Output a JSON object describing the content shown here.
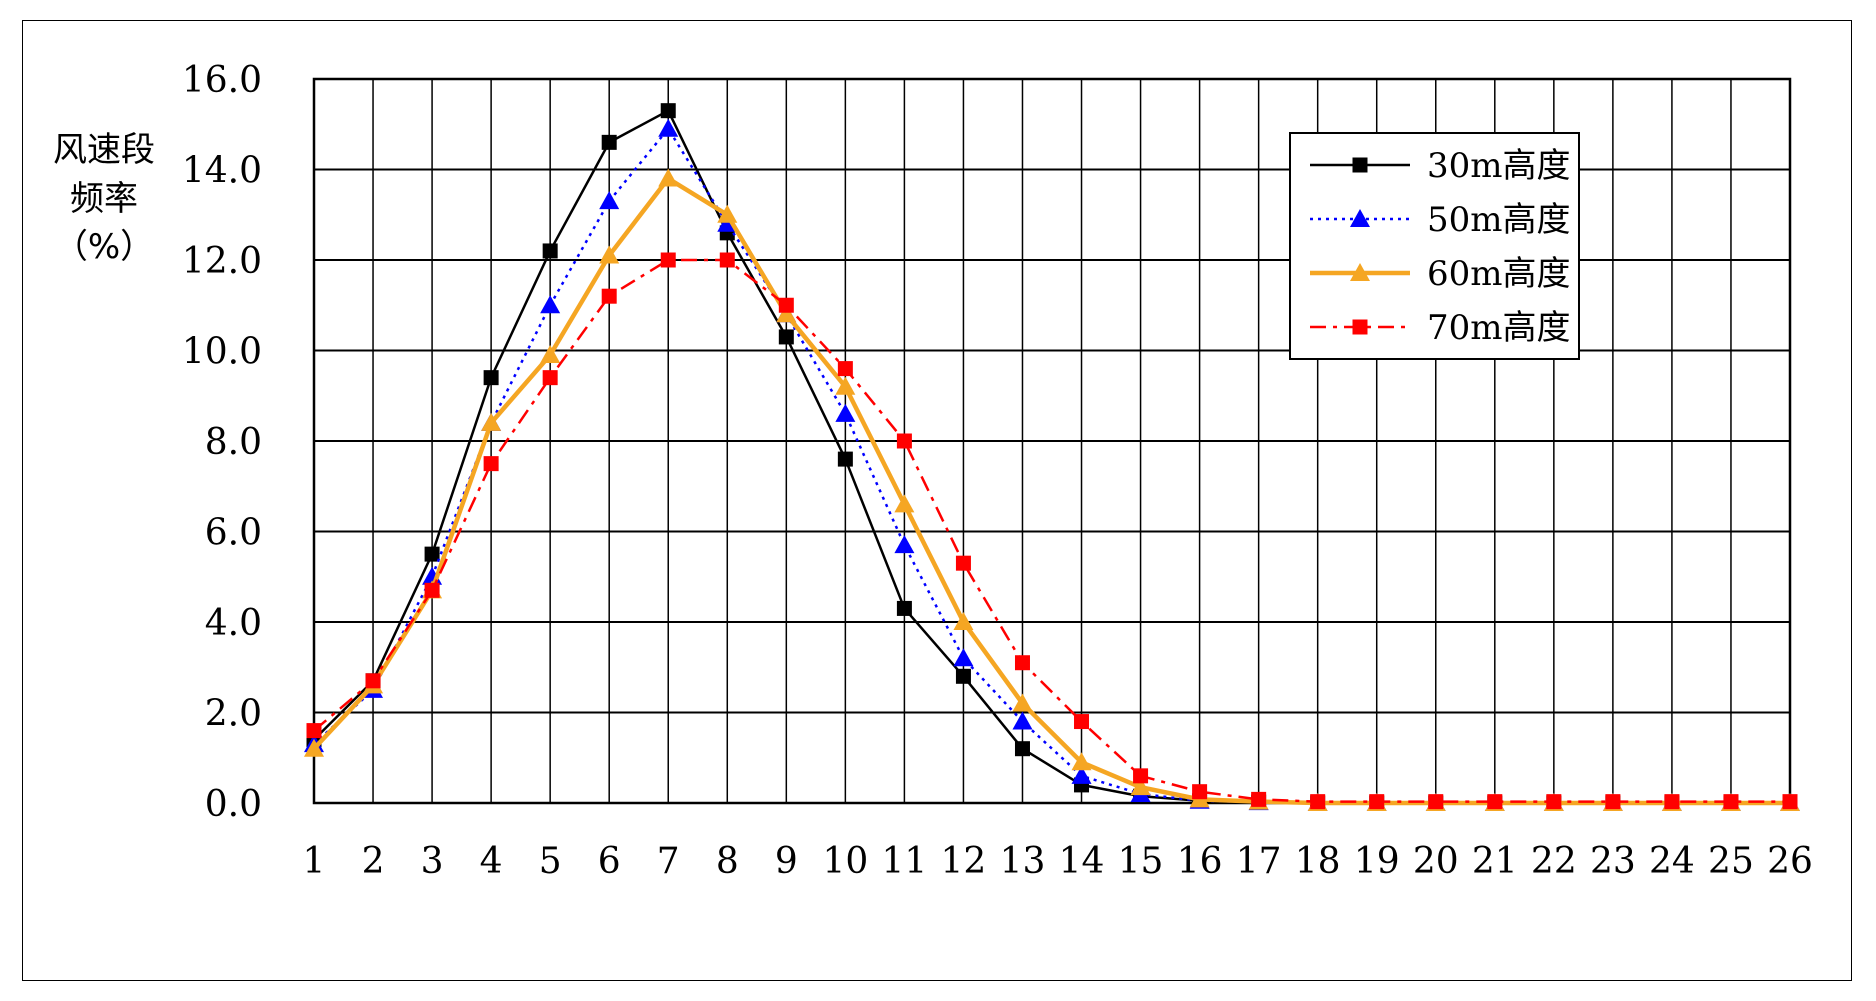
{
  "chart_data": {
    "type": "line",
    "ylabel_lines": [
      "风速段",
      "频率",
      "（%）"
    ],
    "xlabel": "",
    "categories": [
      "1",
      "2",
      "3",
      "4",
      "5",
      "6",
      "7",
      "8",
      "9",
      "10",
      "11",
      "12",
      "13",
      "14",
      "15",
      "16",
      "17",
      "18",
      "19",
      "20",
      "21",
      "22",
      "23",
      "24",
      "25",
      "26"
    ],
    "ylim": [
      0,
      16
    ],
    "yticks": [
      "0.0",
      "2.0",
      "4.0",
      "6.0",
      "8.0",
      "10.0",
      "12.0",
      "14.0",
      "16.0"
    ],
    "grid": true,
    "legend_position": "top-right",
    "series": [
      {
        "name": "30m高度",
        "color": "#000000",
        "marker": "square",
        "line_style": "solid",
        "values": [
          1.4,
          2.7,
          5.5,
          9.4,
          12.2,
          14.6,
          15.3,
          12.6,
          10.3,
          7.6,
          4.3,
          2.8,
          1.2,
          0.4,
          0.15,
          0.05,
          0.02,
          0.0,
          0.0,
          0.0,
          0.0,
          0.0,
          0.0,
          0.0,
          0.0,
          0.0
        ]
      },
      {
        "name": "50m高度",
        "color": "#0000ff",
        "marker": "triangle",
        "line_style": "dotted",
        "values": [
          1.3,
          2.5,
          5.0,
          8.4,
          11.0,
          13.3,
          14.9,
          12.8,
          10.8,
          8.6,
          5.7,
          3.2,
          1.8,
          0.6,
          0.2,
          0.05,
          0.02,
          0.0,
          0.0,
          0.0,
          0.0,
          0.0,
          0.0,
          0.0,
          0.0,
          0.0
        ]
      },
      {
        "name": "60m高度",
        "color": "#f5a623",
        "marker": "triangle",
        "line_style": "solid-thick",
        "values": [
          1.2,
          2.6,
          4.7,
          8.4,
          9.9,
          12.1,
          13.8,
          13.0,
          10.8,
          9.2,
          6.6,
          4.0,
          2.2,
          0.9,
          0.35,
          0.08,
          0.03,
          0.0,
          0.0,
          0.0,
          0.0,
          0.0,
          0.0,
          0.0,
          0.0,
          0.0
        ]
      },
      {
        "name": "70m高度",
        "color": "#ff0000",
        "marker": "square",
        "line_style": "dashdot",
        "values": [
          1.6,
          2.7,
          4.7,
          7.5,
          9.4,
          11.2,
          12.0,
          12.0,
          11.0,
          9.6,
          8.0,
          5.3,
          3.1,
          1.8,
          0.6,
          0.25,
          0.08,
          0.03,
          0.03,
          0.03,
          0.03,
          0.03,
          0.03,
          0.03,
          0.03,
          0.03
        ]
      }
    ]
  }
}
